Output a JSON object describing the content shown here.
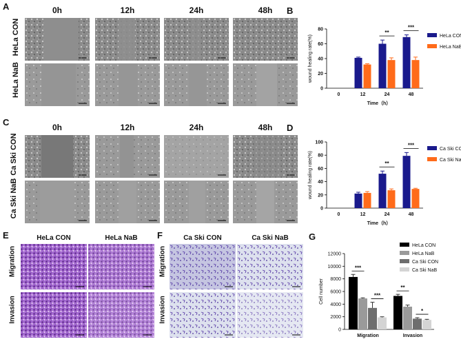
{
  "panel_letters": {
    "a": "A",
    "b": "B",
    "c": "C",
    "d": "D",
    "e": "E",
    "f": "F",
    "g": "G"
  },
  "panel_a": {
    "time_headers": [
      "0h",
      "12h",
      "24h",
      "48h"
    ],
    "rows": [
      "HeLa CON",
      "HeLa NaB"
    ]
  },
  "panel_c": {
    "time_headers": [
      "0h",
      "12h",
      "24h",
      "48h"
    ],
    "rows": [
      "Ca Ski CON",
      "Ca Ski NaB"
    ]
  },
  "panel_e": {
    "col_headers": [
      "HeLa CON",
      "HeLa NaB"
    ],
    "rows": [
      "Migration",
      "Invasion"
    ]
  },
  "panel_f": {
    "col_headers": [
      "Ca Ski CON",
      "Ca Ski NaB"
    ],
    "rows": [
      "Migration",
      "Invasion"
    ]
  },
  "colors": {
    "con_blue": "#1a1a8c",
    "nab_orange": "#ff6b1a",
    "g_black": "#000000",
    "g_gray1": "#9a9a9a",
    "g_gray2": "#6e6e6e",
    "g_gray3": "#d4d4d4",
    "purple_dense": "#7b3fa8",
    "micro_gray": "#8c8c8c"
  },
  "chart_data": [
    {
      "id": "B",
      "type": "bar",
      "ylabel": "wound healing rate(%)",
      "xlabel": "Time（h）",
      "categories": [
        "0",
        "12",
        "24",
        "48"
      ],
      "ylim": [
        0,
        80
      ],
      "yticks": [
        0,
        20,
        40,
        60,
        80
      ],
      "series": [
        {
          "name": "HeLa CON",
          "values": [
            0,
            41,
            60,
            69
          ],
          "errors": [
            0,
            1,
            5,
            3
          ]
        },
        {
          "name": "HeLa NaB",
          "values": [
            0,
            32,
            38,
            38
          ],
          "errors": [
            0,
            1,
            3,
            4
          ]
        }
      ],
      "significance": [
        {
          "category": "24",
          "label": "**"
        },
        {
          "category": "48",
          "label": "***"
        }
      ],
      "legend": "top-right"
    },
    {
      "id": "D",
      "type": "bar",
      "ylabel": "wound healing rate(%)",
      "xlabel": "Time（h）",
      "categories": [
        "0",
        "12",
        "24",
        "48"
      ],
      "ylim": [
        0,
        100
      ],
      "yticks": [
        0,
        20,
        40,
        60,
        80,
        100
      ],
      "series": [
        {
          "name": "Ca Ski CON",
          "values": [
            0,
            22,
            52,
            79
          ],
          "errors": [
            0,
            2,
            4,
            5
          ]
        },
        {
          "name": "Ca Ski NaB",
          "values": [
            0,
            23,
            27,
            29
          ],
          "errors": [
            0,
            2,
            2,
            1
          ]
        }
      ],
      "significance": [
        {
          "category": "24",
          "label": "**"
        },
        {
          "category": "48",
          "label": "***"
        }
      ],
      "legend": "top-right"
    },
    {
      "id": "G",
      "type": "bar",
      "ylabel": "Cell number",
      "xlabel": "",
      "categories": [
        "Migration",
        "Invasion"
      ],
      "ylim": [
        0,
        12000
      ],
      "yticks": [
        0,
        2000,
        4000,
        6000,
        8000,
        10000,
        12000
      ],
      "series": [
        {
          "name": "HeLa CON",
          "values": [
            8300,
            5300
          ],
          "errors": [
            400,
            250
          ]
        },
        {
          "name": "HeLa NaB",
          "values": [
            4900,
            3600
          ],
          "errors": [
            100,
            250
          ]
        },
        {
          "name": "Ca Ski CON",
          "values": [
            3400,
            1700
          ],
          "errors": [
            900,
            150
          ]
        },
        {
          "name": "Ca Ski NaB",
          "values": [
            1900,
            1500
          ],
          "errors": [
            100,
            100
          ]
        }
      ],
      "significance": [
        {
          "category": "Migration",
          "between": "HeLa CON-HeLa NaB",
          "label": "***"
        },
        {
          "category": "Migration",
          "between": "Ca Ski CON-Ca Ski NaB",
          "label": "***"
        },
        {
          "category": "Invasion",
          "between": "HeLa CON-HeLa NaB",
          "label": "**"
        },
        {
          "category": "Invasion",
          "between": "Ca Ski CON-Ca Ski NaB",
          "label": "*"
        }
      ],
      "legend": "top-right"
    }
  ]
}
